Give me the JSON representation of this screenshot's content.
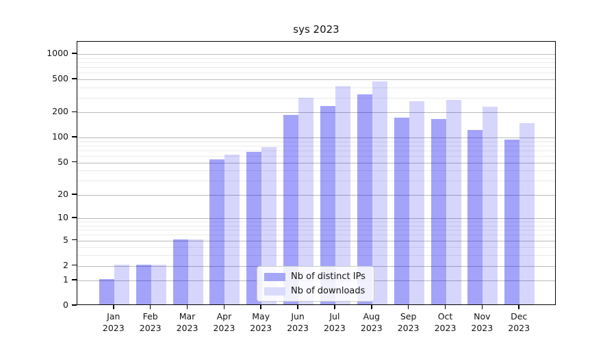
{
  "chart_data": {
    "type": "bar",
    "title": "sys 2023",
    "categories": [
      "Jan",
      "Feb",
      "Mar",
      "Apr",
      "May",
      "Jun",
      "Jul",
      "Aug",
      "Sep",
      "Oct",
      "Nov",
      "Dec"
    ],
    "category_year": "2023",
    "series": [
      {
        "name": "Nb of distinct IPs",
        "color": "rgba(0,0,238,0.36)",
        "legend_color": "#a5a5f7",
        "values": [
          1,
          2,
          5,
          53,
          65,
          180,
          232,
          320,
          168,
          160,
          118,
          91
        ]
      },
      {
        "name": "Nb of downloads",
        "color": "rgba(0,0,238,0.16)",
        "legend_color": "#dadafc",
        "values": [
          2,
          2,
          5,
          60,
          74,
          290,
          400,
          450,
          262,
          274,
          228,
          145
        ]
      }
    ],
    "y_axis": {
      "scale": "symlog-ln(1+y)",
      "ticks": [
        0,
        1,
        2,
        5,
        10,
        20,
        50,
        100,
        200,
        500,
        1000
      ],
      "minor_ticks": [
        3,
        4,
        6,
        7,
        8,
        9,
        30,
        40,
        60,
        70,
        80,
        90,
        300,
        400,
        600,
        700,
        800,
        900
      ],
      "max": 1400
    },
    "x_axis": {
      "tick_labels": [
        "Jan\n2023",
        "Feb\n2023",
        "Mar\n2023",
        "Apr\n2023",
        "May\n2023",
        "Jun\n2023",
        "Jul\n2023",
        "Aug\n2023",
        "Sep\n2023",
        "Oct\n2023",
        "Nov\n2023",
        "Dec\n2023"
      ]
    },
    "legend": {
      "position": "lower-center-inside",
      "entries": [
        "Nb of distinct IPs",
        "Nb of downloads"
      ]
    },
    "grid": true
  },
  "colors": {
    "major_grid": "#b9b9b9",
    "minor_grid": "#eaeaea",
    "spine": "#000000",
    "text": "#111111",
    "background": "#ffffff"
  }
}
